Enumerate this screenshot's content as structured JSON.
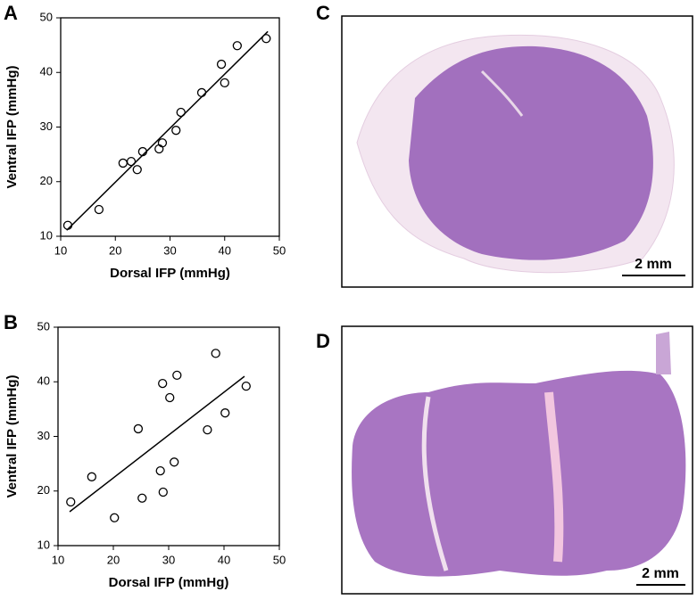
{
  "chart_data": [
    {
      "type": "scatter",
      "panel_label": "A",
      "x_label": "Dorsal IFP (mmHg)",
      "y_label": "Ventral IFP (mmHg)",
      "x": [
        11.3,
        17.0,
        21.4,
        22.9,
        24.0,
        25.0,
        28.0,
        28.6,
        31.1,
        32.0,
        35.8,
        39.4,
        40.0,
        42.3,
        47.6
      ],
      "y": [
        12.0,
        14.9,
        23.4,
        23.7,
        22.2,
        25.5,
        26.0,
        27.1,
        29.4,
        32.7,
        36.3,
        41.5,
        38.1,
        44.9,
        46.2
      ],
      "fit": {
        "x": [
          11.1,
          47.9
        ],
        "y": [
          11.1,
          47.5
        ]
      },
      "xlim": [
        10,
        50
      ],
      "ylim": [
        10,
        50
      ],
      "xticks": [
        10,
        20,
        30,
        40,
        50
      ],
      "yticks": [
        10,
        20,
        30,
        40,
        50
      ]
    },
    {
      "type": "scatter",
      "panel_label": "B",
      "x_label": "Dorsal IFP (mmHg)",
      "y_label": "Ventral IFP (mmHg)",
      "x": [
        12.3,
        16.1,
        20.2,
        24.5,
        25.2,
        28.5,
        28.9,
        29.0,
        30.2,
        31.0,
        31.5,
        37.0,
        38.5,
        40.2,
        44.0
      ],
      "y": [
        18.0,
        22.6,
        15.1,
        31.4,
        18.7,
        23.7,
        39.7,
        19.8,
        37.1,
        25.3,
        41.2,
        31.2,
        45.2,
        34.3,
        39.2
      ],
      "fit": {
        "x": [
          12.1,
          43.7
        ],
        "y": [
          16.2,
          41.0
        ]
      },
      "xlim": [
        10,
        50
      ],
      "ylim": [
        10,
        50
      ],
      "xticks": [
        10,
        20,
        30,
        40,
        50
      ],
      "yticks": [
        10,
        20,
        30,
        40,
        50
      ]
    }
  ],
  "images": [
    {
      "panel_label": "C",
      "scale_bar": "2 mm"
    },
    {
      "panel_label": "D",
      "scale_bar": "2 mm"
    }
  ]
}
